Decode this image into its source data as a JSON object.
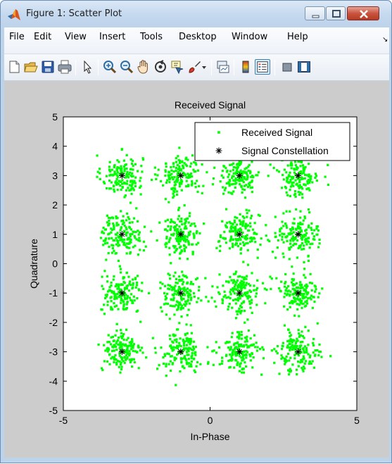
{
  "window": {
    "title": "Figure 1: Scatter Plot"
  },
  "menu": {
    "items": [
      "File",
      "Edit",
      "View",
      "Insert",
      "Tools",
      "Desktop",
      "Window",
      "Help"
    ],
    "chevron": "↘"
  },
  "toolbar": {
    "buttons": [
      {
        "name": "new-figure-icon"
      },
      {
        "name": "open-file-icon"
      },
      {
        "name": "save-icon"
      },
      {
        "name": "print-icon"
      },
      {
        "name": "edit-plot-arrow-icon"
      },
      {
        "name": "zoom-in-icon"
      },
      {
        "name": "zoom-out-icon"
      },
      {
        "name": "pan-hand-icon"
      },
      {
        "name": "rotate-3d-icon"
      },
      {
        "name": "data-cursor-icon"
      },
      {
        "name": "brush-icon"
      },
      {
        "name": "brush-dropdown-icon"
      },
      {
        "name": "link-plot-icon"
      },
      {
        "name": "insert-colorbar-icon"
      },
      {
        "name": "insert-legend-icon"
      },
      {
        "name": "hide-plot-tools-icon"
      },
      {
        "name": "show-plot-tools-icon"
      }
    ]
  },
  "colors": {
    "received": "#00ff00",
    "constellation": "#000000",
    "figure_bg": "#cccccc"
  },
  "chart_data": {
    "type": "scatter",
    "title": "Received Signal",
    "xlabel": "In-Phase",
    "ylabel": "Quadrature",
    "xlim": [
      -5,
      5
    ],
    "ylim": [
      -5,
      5
    ],
    "xticks": [
      "-5",
      "0",
      "5"
    ],
    "yticks": [
      "-5",
      "-4",
      "-3",
      "-2",
      "-1",
      "0",
      "1",
      "2",
      "3",
      "4",
      "5"
    ],
    "grid": false,
    "legend_position": "top-right",
    "series": [
      {
        "name": "Received Signal",
        "marker": "dot",
        "color": "#00ff00",
        "cluster_centers": [
          [
            -3,
            3
          ],
          [
            -1,
            3
          ],
          [
            1,
            3
          ],
          [
            3,
            3
          ],
          [
            -3,
            1
          ],
          [
            -1,
            1
          ],
          [
            1,
            1
          ],
          [
            3,
            1
          ],
          [
            -3,
            -1
          ],
          [
            -1,
            -1
          ],
          [
            1,
            -1
          ],
          [
            3,
            -1
          ],
          [
            -3,
            -3
          ],
          [
            -1,
            -3
          ],
          [
            1,
            -3
          ],
          [
            3,
            -3
          ]
        ],
        "spread_std": 0.35
      },
      {
        "name": "Signal Constellation",
        "marker": "asterisk",
        "color": "#000000",
        "points": [
          [
            -3,
            3
          ],
          [
            -1,
            3
          ],
          [
            1,
            3
          ],
          [
            3,
            3
          ],
          [
            -3,
            1
          ],
          [
            -1,
            1
          ],
          [
            1,
            1
          ],
          [
            3,
            1
          ],
          [
            -3,
            -1
          ],
          [
            -1,
            -1
          ],
          [
            1,
            -1
          ],
          [
            3,
            -1
          ],
          [
            -3,
            -3
          ],
          [
            -1,
            -3
          ],
          [
            1,
            -3
          ],
          [
            3,
            -3
          ]
        ]
      }
    ]
  }
}
